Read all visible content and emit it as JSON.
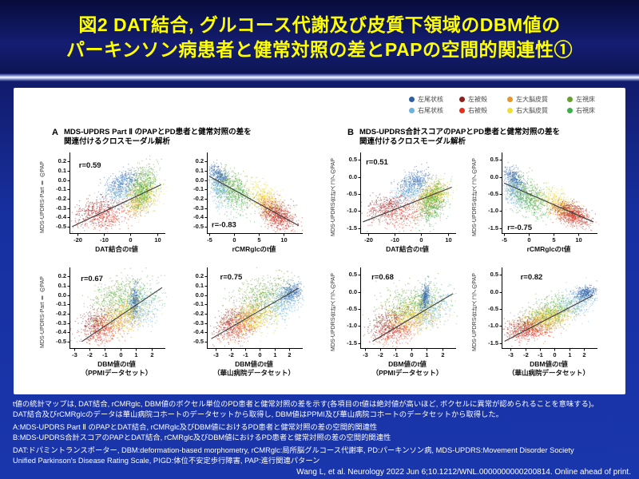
{
  "title": {
    "line1": "図2 DAT結合, グルコース代謝及び皮質下領域のDBM値の",
    "line2": "パーキンソン病患者と健常対照の差とPAPの空間的関連性①"
  },
  "colors": {
    "db": "#2e5fa3",
    "lb": "#6db3e0",
    "dr": "#8e1f1f",
    "r": "#e0301e",
    "o": "#e6962e",
    "y": "#f0de35",
    "dg": "#68a02e",
    "g": "#3cb04a"
  },
  "legend": {
    "rows": [
      [
        {
          "label": "左尾状核",
          "color": "db"
        },
        {
          "label": "左被殻",
          "color": "dr"
        },
        {
          "label": "左大脳皮質",
          "color": "o"
        },
        {
          "label": "左視床",
          "color": "dg"
        }
      ],
      [
        {
          "label": "右尾状核",
          "color": "lb"
        },
        {
          "label": "右被殻",
          "color": "r"
        },
        {
          "label": "右大脳皮質",
          "color": "y"
        },
        {
          "label": "右視床",
          "color": "g"
        }
      ]
    ]
  },
  "sections": [
    {
      "label": "A",
      "title_line1": "MDS-UPDRS Part Ⅱ のPAPとPD患者と健常対照の差を",
      "title_line2": "関連付けるクロスモーダル解析"
    },
    {
      "label": "B",
      "title_line1": "MDS-UPDRS合計スコアのPAPとPD患者と健常対照の差を",
      "title_line2": "関連付けるクロスモーダル解析"
    }
  ],
  "points_per_cluster": 320,
  "chart_data": [
    {
      "id": "A-DAT",
      "type": "scatter",
      "r_label": "r=0.59",
      "r_fx": 0.1,
      "r_fy": 0.08,
      "xlabel": [
        "DAT結合のt値"
      ],
      "ylabel": "MDS-UPDRS-Part Ⅱ のPAP",
      "xlim": [
        -23,
        12.5
      ],
      "ylim": [
        -0.57,
        0.27
      ],
      "xticks": [
        "-20",
        "-10",
        "0",
        "10"
      ],
      "yticks": [
        "0.2",
        "0.1",
        "0.0",
        "-0.1",
        "-0.2",
        "-0.3",
        "-0.4",
        "-0.5"
      ],
      "trend": [
        [
          -22,
          -0.5
        ],
        [
          11.5,
          -0.05
        ]
      ],
      "rho": 0.35,
      "clusters": [
        {
          "c": "dr",
          "x": -13,
          "y": -0.33,
          "sx": 4.5,
          "sy": 0.07
        },
        {
          "c": "r",
          "x": -9,
          "y": -0.4,
          "sx": 5,
          "sy": 0.08
        },
        {
          "c": "db",
          "x": -2.5,
          "y": -0.02,
          "sx": 3,
          "sy": 0.07
        },
        {
          "c": "lb",
          "x": -4,
          "y": -0.13,
          "sx": 3.5,
          "sy": 0.09
        },
        {
          "c": "o",
          "x": 3.5,
          "y": -0.22,
          "sx": 3,
          "sy": 0.09
        },
        {
          "c": "y",
          "x": 5,
          "y": -0.17,
          "sx": 3,
          "sy": 0.08
        },
        {
          "c": "dg",
          "x": 4,
          "y": -0.04,
          "sx": 2.5,
          "sy": 0.11
        },
        {
          "c": "g",
          "x": 5,
          "y": -0.12,
          "sx": 2.5,
          "sy": 0.11
        }
      ]
    },
    {
      "id": "A-rCMRglc",
      "type": "scatter",
      "r_label": "r=-0.83",
      "r_fx": 0.05,
      "r_fy": 0.84,
      "xlabel": [
        "rCMRglcのt値"
      ],
      "ylabel": "MDS-UPDRS-Part Ⅱ のPAP",
      "xlim": [
        -5.5,
        13.5
      ],
      "ylim": [
        -0.57,
        0.27
      ],
      "xticks": [
        "-5",
        "0",
        "5",
        "10"
      ],
      "yticks": [
        "0.2",
        "0.1",
        "0.0",
        "-0.1",
        "-0.2",
        "-0.3",
        "-0.4",
        "-0.5"
      ],
      "trend": [
        [
          -5,
          0.04
        ],
        [
          13,
          -0.49
        ]
      ],
      "rho": -0.35,
      "clusters": [
        {
          "c": "db",
          "x": -3,
          "y": 0.05,
          "sx": 1,
          "sy": 0.06
        },
        {
          "c": "lb",
          "x": -3,
          "y": -0.12,
          "sx": 1.2,
          "sy": 0.09
        },
        {
          "c": "dg",
          "x": -0.5,
          "y": -0.08,
          "sx": 1.8,
          "sy": 0.1
        },
        {
          "c": "g",
          "x": 0.5,
          "y": -0.16,
          "sx": 1.8,
          "sy": 0.1
        },
        {
          "c": "y",
          "x": 6,
          "y": -0.18,
          "sx": 1.6,
          "sy": 0.08
        },
        {
          "c": "o",
          "x": 7,
          "y": -0.28,
          "sx": 1.5,
          "sy": 0.07
        },
        {
          "c": "dr",
          "x": 8.5,
          "y": -0.36,
          "sx": 1.6,
          "sy": 0.07
        },
        {
          "c": "r",
          "x": 9.5,
          "y": -0.42,
          "sx": 1.8,
          "sy": 0.08
        }
      ]
    },
    {
      "id": "B-DAT",
      "type": "scatter",
      "r_label": "r=0.51",
      "r_fx": 0.06,
      "r_fy": 0.04,
      "xlabel": [
        "DAT結合のt値"
      ],
      "ylabel": "MDS-UPDRS合計スコアのPAP",
      "xlim": [
        -23,
        12.5
      ],
      "ylim": [
        -1.65,
        0.65
      ],
      "xticks": [
        "-20",
        "-10",
        "0",
        "10"
      ],
      "yticks": [
        "0.5",
        "0.0",
        "-0.5",
        "-1.0",
        "-1.5"
      ],
      "trend": [
        [
          -22,
          -1.32
        ],
        [
          11.5,
          -0.3
        ]
      ],
      "rho": 0.35,
      "clusters": [
        {
          "c": "dr",
          "x": -13,
          "y": -0.85,
          "sx": 4.5,
          "sy": 0.18
        },
        {
          "c": "r",
          "x": -8,
          "y": -1.1,
          "sx": 5,
          "sy": 0.2
        },
        {
          "c": "db",
          "x": -2.5,
          "y": -0.15,
          "sx": 3,
          "sy": 0.18
        },
        {
          "c": "lb",
          "x": -4,
          "y": -0.4,
          "sx": 3.5,
          "sy": 0.22
        },
        {
          "c": "o",
          "x": 3.5,
          "y": -0.62,
          "sx": 3,
          "sy": 0.22
        },
        {
          "c": "y",
          "x": 5,
          "y": -0.5,
          "sx": 3,
          "sy": 0.2
        },
        {
          "c": "dg",
          "x": 3.5,
          "y": -0.72,
          "sx": 2.5,
          "sy": 0.28
        },
        {
          "c": "g",
          "x": 4.5,
          "y": -0.8,
          "sx": 2.5,
          "sy": 0.28
        }
      ]
    },
    {
      "id": "B-rCMRglc",
      "type": "scatter",
      "r_label": "r=-0.75",
      "r_fx": 0.06,
      "r_fy": 0.88,
      "xlabel": [
        "rCMRglcのt値"
      ],
      "ylabel": "MDS-UPDRS合計スコアのPAP",
      "xlim": [
        -5.5,
        13.5
      ],
      "ylim": [
        -1.65,
        0.65
      ],
      "xticks": [
        "-5",
        "0",
        "5",
        "10"
      ],
      "yticks": [
        "0.5",
        "0.0",
        "-0.5",
        "-1.0",
        "-1.5"
      ],
      "trend": [
        [
          -5,
          -0.18
        ],
        [
          13,
          -1.32
        ]
      ],
      "rho": -0.35,
      "clusters": [
        {
          "c": "db",
          "x": -3,
          "y": -0.08,
          "sx": 1,
          "sy": 0.18
        },
        {
          "c": "lb",
          "x": -3,
          "y": -0.45,
          "sx": 1.2,
          "sy": 0.25
        },
        {
          "c": "dg",
          "x": -0.3,
          "y": -0.55,
          "sx": 1.8,
          "sy": 0.28
        },
        {
          "c": "g",
          "x": 0.7,
          "y": -0.7,
          "sx": 1.8,
          "sy": 0.28
        },
        {
          "c": "y",
          "x": 5.5,
          "y": -0.72,
          "sx": 1.6,
          "sy": 0.2
        },
        {
          "c": "o",
          "x": 7,
          "y": -0.95,
          "sx": 1.5,
          "sy": 0.15
        },
        {
          "c": "dr",
          "x": 8.5,
          "y": -1.05,
          "sx": 1.6,
          "sy": 0.15
        },
        {
          "c": "r",
          "x": 9.5,
          "y": -1.18,
          "sx": 1.8,
          "sy": 0.15
        }
      ]
    },
    {
      "id": "A-DBM-PPMI",
      "type": "scatter",
      "r_label": "r=0.67",
      "r_fx": 0.12,
      "r_fy": 0.06,
      "xlabel": [
        "DBM値のt値",
        "（PPMIデータセット）"
      ],
      "ylabel": "MDS-UPDRS-Part Ⅱ のPAP",
      "xlim": [
        -3.3,
        2.8
      ],
      "ylim": [
        -0.57,
        0.27
      ],
      "xticks": [
        "-3",
        "-2",
        "-1",
        "0",
        "1",
        "2"
      ],
      "yticks": [
        "0.2",
        "0.1",
        "0.0",
        "-0.1",
        "-0.2",
        "-0.3",
        "-0.4",
        "-0.5"
      ],
      "trend": [
        [
          -2.5,
          -0.5
        ],
        [
          2.7,
          0.08
        ]
      ],
      "rho": 0.35,
      "clusters": [
        {
          "c": "dr",
          "x": -1.5,
          "y": -0.3,
          "sx": 0.6,
          "sy": 0.08
        },
        {
          "c": "r",
          "x": -1.1,
          "y": -0.38,
          "sx": 0.7,
          "sy": 0.08
        },
        {
          "c": "dg",
          "x": -0.2,
          "y": 0.0,
          "sx": 1.0,
          "sy": 0.1
        },
        {
          "c": "g",
          "x": 0.5,
          "y": -0.06,
          "sx": 1.0,
          "sy": 0.11
        },
        {
          "c": "db",
          "x": 0.9,
          "y": -0.08,
          "sx": 0.15,
          "sy": 0.1
        },
        {
          "c": "lb",
          "x": 1.4,
          "y": -0.16,
          "sx": 0.6,
          "sy": 0.11
        },
        {
          "c": "o",
          "x": 0,
          "y": -0.26,
          "sx": 0.8,
          "sy": 0.09
        },
        {
          "c": "y",
          "x": 0.3,
          "y": -0.2,
          "sx": 0.8,
          "sy": 0.09
        }
      ]
    },
    {
      "id": "A-DBM-Huashan",
      "type": "scatter",
      "r_label": "r=0.75",
      "r_fx": 0.14,
      "r_fy": 0.04,
      "xlabel": [
        "DBM値のt値",
        "（華山病院データセット）"
      ],
      "ylabel": "MDS-UPDRS-Part Ⅱ のPAP",
      "xlim": [
        -3.6,
        2.8
      ],
      "ylim": [
        -0.57,
        0.27
      ],
      "xticks": [
        "-3",
        "-2",
        "-1",
        "0",
        "1",
        "2"
      ],
      "yticks": [
        "0.2",
        "0.1",
        "0.0",
        "-0.1",
        "-0.2",
        "-0.3",
        "-0.4",
        "-0.5"
      ],
      "trend": [
        [
          -3.3,
          -0.47
        ],
        [
          2.6,
          0.07
        ]
      ],
      "rho": 0.35,
      "clusters": [
        {
          "c": "dr",
          "x": -1.9,
          "y": -0.3,
          "sx": 0.6,
          "sy": 0.08
        },
        {
          "c": "r",
          "x": -1.4,
          "y": -0.35,
          "sx": 0.7,
          "sy": 0.08
        },
        {
          "c": "dg",
          "x": 0.3,
          "y": 0.03,
          "sx": 1.0,
          "sy": 0.1
        },
        {
          "c": "g",
          "x": 0,
          "y": -0.1,
          "sx": 1.0,
          "sy": 0.11
        },
        {
          "c": "db",
          "x": 2.1,
          "y": 0.02,
          "sx": 0.35,
          "sy": 0.05
        },
        {
          "c": "lb",
          "x": 1.6,
          "y": -0.1,
          "sx": 0.6,
          "sy": 0.1
        },
        {
          "c": "o",
          "x": -0.6,
          "y": -0.22,
          "sx": 0.8,
          "sy": 0.09
        },
        {
          "c": "y",
          "x": -0.3,
          "y": -0.27,
          "sx": 0.8,
          "sy": 0.09
        }
      ]
    },
    {
      "id": "B-DBM-PPMI",
      "type": "scatter",
      "r_label": "r=0.68",
      "r_fx": 0.12,
      "r_fy": 0.04,
      "xlabel": [
        "DBM値のt値",
        "（PPMIデータセット）"
      ],
      "ylabel": "MDS-UPDRS合計スコアのPAP",
      "xlim": [
        -3.3,
        2.8
      ],
      "ylim": [
        -1.65,
        0.65
      ],
      "xticks": [
        "-3",
        "-2",
        "-1",
        "0",
        "1",
        "2"
      ],
      "yticks": [
        "0.5",
        "0.0",
        "-0.5",
        "-1.0",
        "-1.5"
      ],
      "trend": [
        [
          -2.5,
          -1.45
        ],
        [
          2.7,
          -0.05
        ]
      ],
      "rho": 0.35,
      "clusters": [
        {
          "c": "dr",
          "x": -1.5,
          "y": -0.9,
          "sx": 0.6,
          "sy": 0.2
        },
        {
          "c": "r",
          "x": -1.1,
          "y": -1.2,
          "sx": 0.7,
          "sy": 0.18
        },
        {
          "c": "dg",
          "x": -0.2,
          "y": -0.3,
          "sx": 1.0,
          "sy": 0.28
        },
        {
          "c": "g",
          "x": 0.5,
          "y": -0.45,
          "sx": 1.0,
          "sy": 0.28
        },
        {
          "c": "db",
          "x": 0.9,
          "y": -0.2,
          "sx": 0.15,
          "sy": 0.22
        },
        {
          "c": "lb",
          "x": 1.3,
          "y": -0.55,
          "sx": 0.6,
          "sy": 0.28
        },
        {
          "c": "o",
          "x": 0,
          "y": -0.8,
          "sx": 0.8,
          "sy": 0.22
        },
        {
          "c": "y",
          "x": 0.3,
          "y": -0.65,
          "sx": 0.8,
          "sy": 0.22
        }
      ]
    },
    {
      "id": "B-DBM-Huashan",
      "type": "scatter",
      "r_label": "r=0.82",
      "r_fx": 0.2,
      "r_fy": 0.04,
      "xlabel": [
        "DBM値のt値",
        "（華山病院データセット）"
      ],
      "ylabel": "MDS-UPDRS合計スコアのPAP",
      "xlim": [
        -3.6,
        2.8
      ],
      "ylim": [
        -1.65,
        0.65
      ],
      "xticks": [
        "-3",
        "-2",
        "-1",
        "0",
        "1",
        "2"
      ],
      "yticks": [
        "0.5",
        "0.0",
        "-0.5",
        "-1.0",
        "-1.5"
      ],
      "trend": [
        [
          -3.4,
          -1.45
        ],
        [
          2.6,
          -0.1
        ]
      ],
      "rho": 0.35,
      "clusters": [
        {
          "c": "dr",
          "x": -2.0,
          "y": -1.0,
          "sx": 0.7,
          "sy": 0.15
        },
        {
          "c": "r",
          "x": -1.7,
          "y": -1.2,
          "sx": 0.8,
          "sy": 0.13
        },
        {
          "c": "dg",
          "x": -0.4,
          "y": -0.65,
          "sx": 0.9,
          "sy": 0.22
        },
        {
          "c": "g",
          "x": -0.1,
          "y": -0.55,
          "sx": 0.9,
          "sy": 0.22
        },
        {
          "c": "db",
          "x": 2.1,
          "y": -0.02,
          "sx": 0.35,
          "sy": 0.1
        },
        {
          "c": "lb",
          "x": 1.5,
          "y": -0.3,
          "sx": 0.7,
          "sy": 0.22
        },
        {
          "c": "o",
          "x": -0.7,
          "y": -0.85,
          "sx": 0.8,
          "sy": 0.18
        },
        {
          "c": "y",
          "x": -0.4,
          "y": -0.75,
          "sx": 0.8,
          "sy": 0.18
        }
      ]
    }
  ],
  "footnotes": [
    "t値の統計マップは, DAT結合, rCMRglc, DBM値のボクセル単位のPD患者と健常対照の差を示す(各項目のt値は絶対値が高いほど, ボクセルに異常が認められることを意味する)。",
    "DAT結合及びrCMRglcのデータは華山病院コホートのデータセットから取得し, DBM値はPPMI及び華山病院コホートのデータセットから取得した。",
    "A:MDS-UPDRS Part Ⅱ のPAPとDAT結合, rCMRglc及びDBM値におけるPD患者と健常対照の差の空間的関連性",
    "B:MDS-UPDRS合計スコアのPAPとDAT結合, rCMRglc及びDBM値におけるPD患者と健常対照の差の空間的関連性",
    "DAT:ドパミントランスポーター, DBM:deformation-based morphometry, rCMRglc:局所脳グルコース代謝率, PD:パーキンソン病, MDS-UPDRS:Movement Disorder Society",
    "Unified Parkinson's Disease Rating Scale, PIGD:体位不安定歩行障害, PAP:進行関連パターン"
  ],
  "citation": "Wang L, et al. Neurology 2022 Jun 6;10.1212/WNL.0000000000200814. Online ahead of print."
}
